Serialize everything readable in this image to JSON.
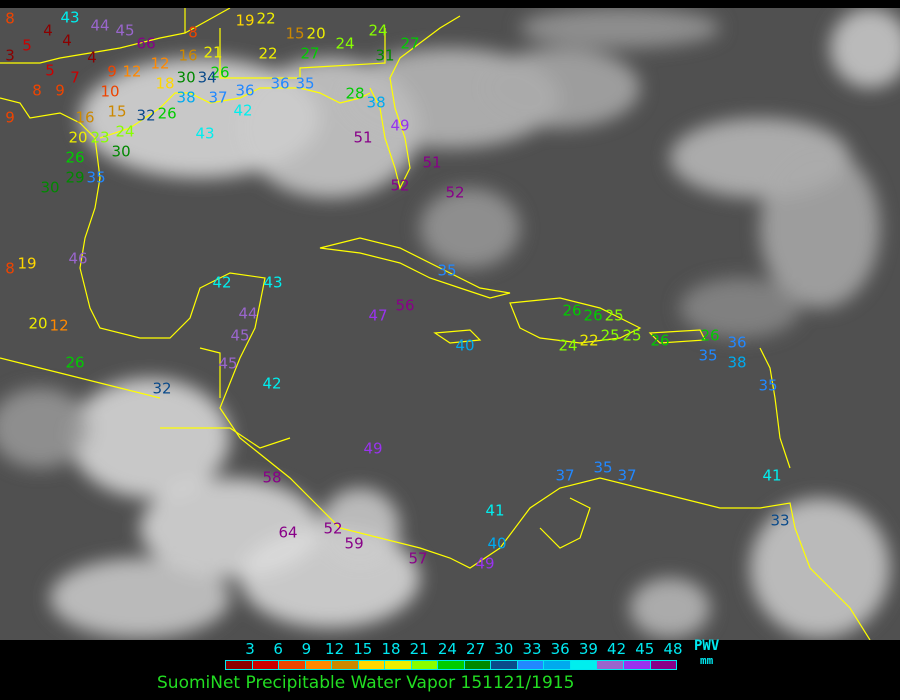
{
  "title": "SuomiNet Precipitable Water Vapor 151121/1915",
  "legend": {
    "label": "PWV",
    "unit": "mm",
    "ticks": [
      "3",
      "6",
      "9",
      "12",
      "15",
      "18",
      "21",
      "24",
      "27",
      "30",
      "33",
      "36",
      "39",
      "42",
      "45",
      "48"
    ],
    "colors": [
      "#8b0000",
      "#cc0000",
      "#ee4400",
      "#ff8800",
      "#cc8800",
      "#ffd700",
      "#eeee00",
      "#88ff00",
      "#00cc00",
      "#008800",
      "#0a4a8a",
      "#2288ff",
      "#00aaee",
      "#00eeee",
      "#9966cc",
      "#9933ee",
      "#880088"
    ]
  },
  "colors": {
    "coastline": "#ffff00",
    "background": "#555555"
  },
  "stations": [
    "8",
    "43",
    "4",
    "44",
    "45",
    "66",
    "8",
    "3",
    "5",
    "4",
    "4",
    "5",
    "7",
    "8",
    "9",
    "9",
    "12",
    "10",
    "15",
    "12",
    "16",
    "21",
    "26",
    "18",
    "30",
    "34",
    "38",
    "37",
    "36",
    "36",
    "35",
    "42",
    "43",
    "19",
    "22",
    "22",
    "15",
    "20",
    "27",
    "24",
    "24",
    "31",
    "27",
    "28",
    "38",
    "9",
    "16",
    "20",
    "23",
    "24",
    "32",
    "26",
    "26",
    "29",
    "30",
    "35",
    "30",
    "51",
    "49",
    "51",
    "52",
    "52",
    "8",
    "19",
    "46",
    "42",
    "43",
    "44",
    "45",
    "45",
    "20",
    "12",
    "26",
    "32",
    "42",
    "35",
    "47",
    "56",
    "40",
    "26",
    "26",
    "25",
    "24",
    "22",
    "25",
    "25",
    "26",
    "26",
    "36",
    "35",
    "38",
    "35",
    "49",
    "58",
    "37",
    "35",
    "37",
    "41",
    "41",
    "40",
    "49",
    "33",
    "64",
    "52",
    "59",
    "57"
  ]
}
